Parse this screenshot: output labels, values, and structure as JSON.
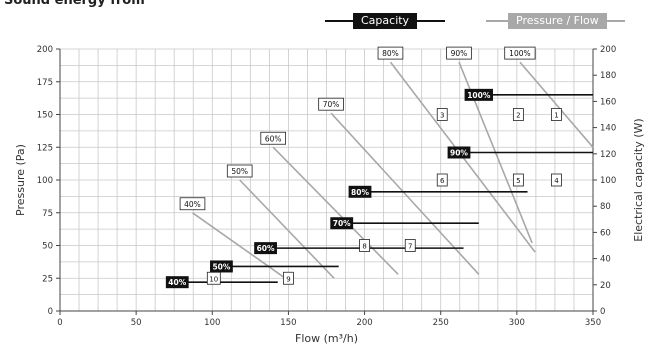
{
  "heading": "Sound energy from",
  "legend": {
    "capacity": "Capacity",
    "pressure_flow": "Pressure / Flow"
  },
  "colors": {
    "capacity": "#111111",
    "pressure_flow": "#a8a8a8",
    "grid": "#c8c8c8",
    "axis": "#444444"
  },
  "chart_data": {
    "type": "line",
    "xlabel": "Flow (m³/h)",
    "ylabel": "Pressure (Pa)",
    "y2label": "Electrical capacity (W)",
    "xlim": [
      0,
      350
    ],
    "ylim": [
      0,
      200
    ],
    "y2lim": [
      0,
      200
    ],
    "x_ticks": [
      0,
      50,
      100,
      150,
      200,
      250,
      300,
      350
    ],
    "y_ticks": [
      0,
      25,
      50,
      75,
      100,
      125,
      150,
      175,
      200
    ],
    "y2_ticks": [
      0,
      20,
      40,
      60,
      80,
      100,
      120,
      140,
      160,
      180,
      200
    ],
    "grid": true,
    "pressure_flow_series": [
      {
        "label": "40%",
        "points": [
          [
            87,
            75
          ],
          [
            148,
            25
          ]
        ]
      },
      {
        "label": "50%",
        "points": [
          [
            118,
            100
          ],
          [
            180,
            25
          ]
        ]
      },
      {
        "label": "60%",
        "points": [
          [
            140,
            125
          ],
          [
            222,
            28
          ]
        ]
      },
      {
        "label": "70%",
        "points": [
          [
            178,
            151
          ],
          [
            275,
            28
          ]
        ]
      },
      {
        "label": "80%",
        "points": [
          [
            217,
            190
          ],
          [
            312,
            45
          ]
        ]
      },
      {
        "label": "90%",
        "points": [
          [
            262,
            190
          ],
          [
            310,
            52
          ]
        ]
      },
      {
        "label": "100%",
        "points": [
          [
            302,
            190
          ],
          [
            350,
            125
          ]
        ]
      }
    ],
    "capacity_series": [
      {
        "label": "40%",
        "y": 22,
        "x": [
          77,
          143
        ]
      },
      {
        "label": "50%",
        "y": 34,
        "x": [
          106,
          183
        ]
      },
      {
        "label": "60%",
        "y": 48,
        "x": [
          135,
          265
        ]
      },
      {
        "label": "70%",
        "y": 67,
        "x": [
          185,
          275
        ]
      },
      {
        "label": "80%",
        "y": 91,
        "x": [
          197,
          307
        ]
      },
      {
        "label": "90%",
        "y": 121,
        "x": [
          262,
          350
        ]
      },
      {
        "label": "100%",
        "y": 165,
        "x": [
          275,
          350
        ]
      }
    ],
    "markers": [
      {
        "label": "1",
        "x": 326,
        "y": 150
      },
      {
        "label": "2",
        "x": 301,
        "y": 150
      },
      {
        "label": "3",
        "x": 251,
        "y": 150
      },
      {
        "label": "4",
        "x": 326,
        "y": 100
      },
      {
        "label": "5",
        "x": 301,
        "y": 100
      },
      {
        "label": "6",
        "x": 251,
        "y": 100
      },
      {
        "label": "7",
        "x": 230,
        "y": 50
      },
      {
        "label": "8",
        "x": 200,
        "y": 50
      },
      {
        "label": "9",
        "x": 150,
        "y": 25
      },
      {
        "label": "10",
        "x": 101,
        "y": 25
      }
    ]
  }
}
